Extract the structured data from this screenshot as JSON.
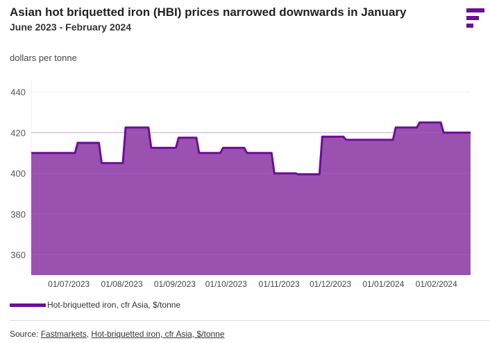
{
  "title": "Asian hot briquetted iron (HBI) prices narrowed downwards in January",
  "subtitle": "June 2023 - February 2024",
  "source": {
    "label": "Source:",
    "links": [
      "Fastmarkets",
      "Hot-briquetted iron, cfr Asia, $/tonne"
    ],
    "sep": ","
  },
  "colors": {
    "line": "#6b0f93",
    "fill": "#9b51b0",
    "grid": "#eeeeee"
  },
  "chart_data": {
    "type": "area",
    "title": "Asian hot briquetted iron (HBI) prices narrowed downwards in January",
    "ylabel": "dollars per tonne",
    "xlabel": "",
    "ylim": [
      350,
      446
    ],
    "yticks": [
      360,
      380,
      400,
      420,
      440
    ],
    "xticks": [
      "01/07/2023",
      "01/08/2023",
      "01/09/2023",
      "01/10/2023",
      "01/11/2023",
      "01/12/2023",
      "01/01/2024",
      "01/02/2024"
    ],
    "xtick_dates": [
      "2023-07-01",
      "2023-08-01",
      "2023-09-01",
      "2023-10-01",
      "2023-11-01",
      "2023-12-01",
      "2024-01-01",
      "2024-02-01"
    ],
    "xrange": [
      "2023-06-09",
      "2024-02-21"
    ],
    "grid": true,
    "legend": "bottom-left",
    "series": [
      {
        "name": "Hot-briquetted iron, cfr Asia, $/tonne",
        "step": true,
        "points": [
          [
            "2023-06-09",
            410
          ],
          [
            "2023-07-05",
            415
          ],
          [
            "2023-07-19",
            405
          ],
          [
            "2023-08-02",
            422.5
          ],
          [
            "2023-08-17",
            412.5
          ],
          [
            "2023-09-02",
            417.5
          ],
          [
            "2023-09-14",
            410
          ],
          [
            "2023-09-28",
            412.5
          ],
          [
            "2023-10-12",
            410
          ],
          [
            "2023-10-28",
            400
          ],
          [
            "2023-11-11",
            399.5
          ],
          [
            "2023-11-25",
            418
          ],
          [
            "2023-12-09",
            416.5
          ],
          [
            "2024-01-07",
            422.5
          ],
          [
            "2024-01-21",
            425
          ],
          [
            "2024-02-04",
            420
          ]
        ]
      }
    ]
  }
}
